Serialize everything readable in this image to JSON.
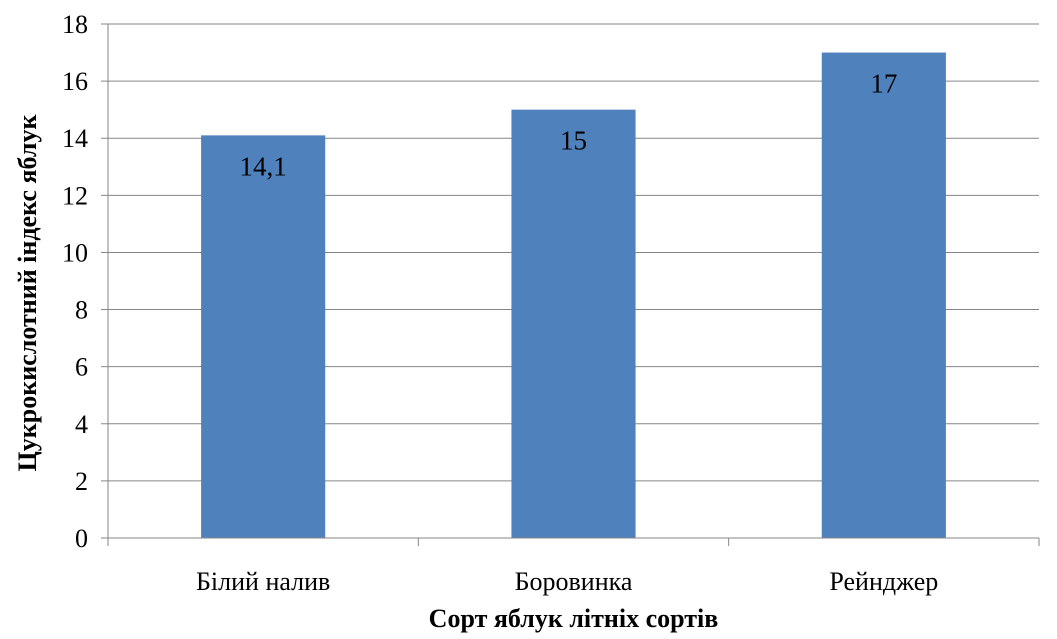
{
  "chart_data": {
    "type": "bar",
    "categories": [
      "Білий налив",
      "Боровинка",
      "Рейнджер"
    ],
    "values": [
      14.1,
      15,
      17
    ],
    "data_labels": [
      "14,1",
      "15",
      "17"
    ],
    "xlabel": "Сорт яблук літніх сортів",
    "ylabel": "Цукрокислотний індекс яблук",
    "ylim": [
      0,
      18
    ],
    "yticks": [
      0,
      2,
      4,
      6,
      8,
      10,
      12,
      14,
      16,
      18
    ],
    "grid": true,
    "legend": "none",
    "bar_color": "#4F81BD",
    "grid_color": "#868686"
  }
}
